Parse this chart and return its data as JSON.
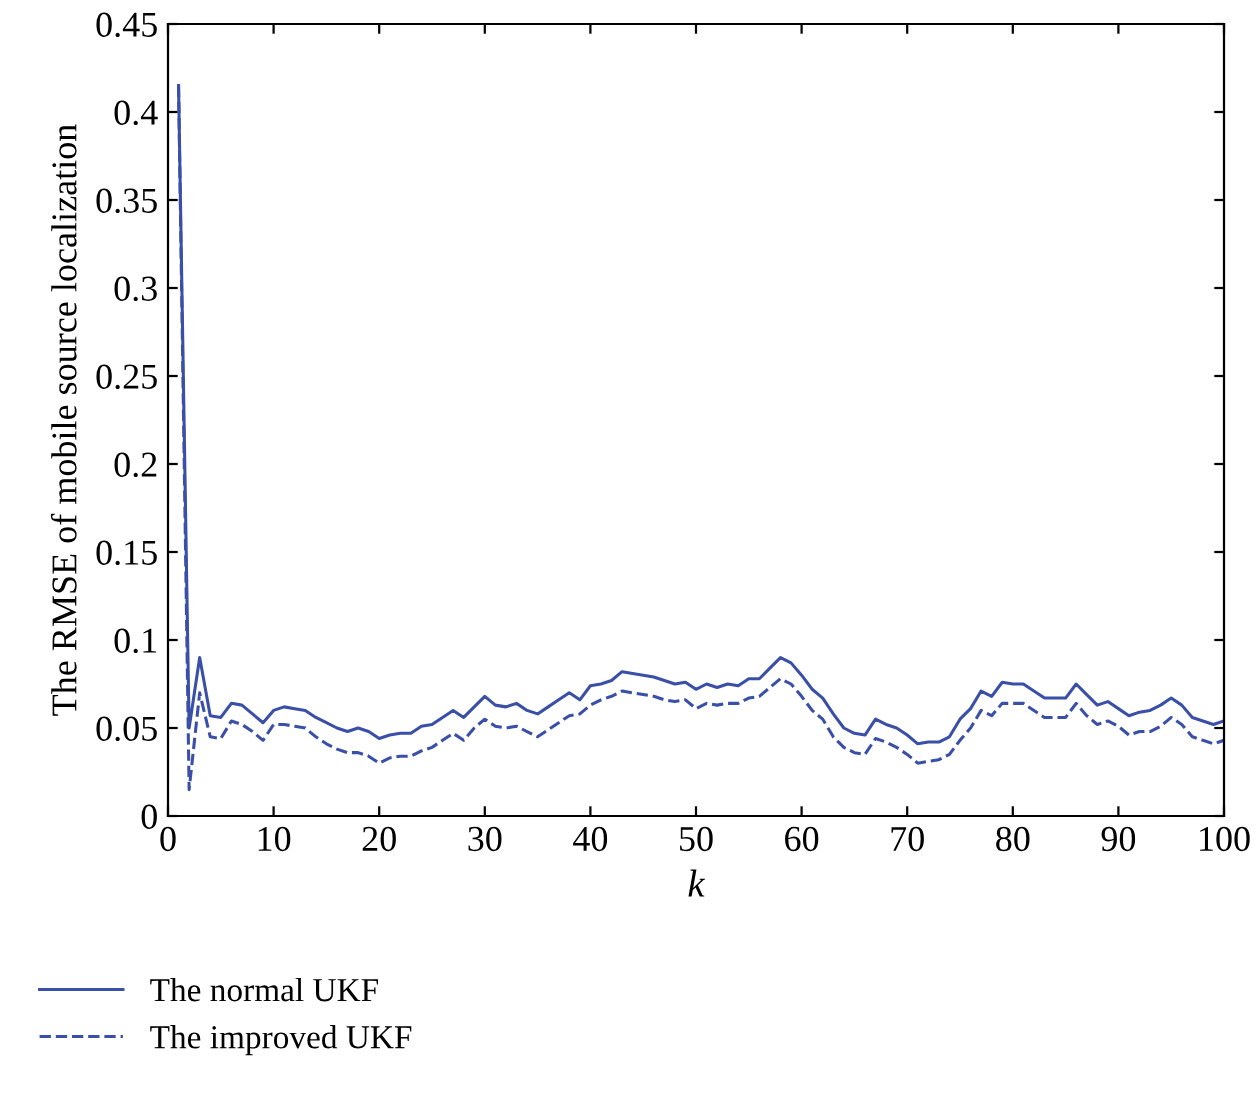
{
  "chart_data": {
    "type": "line",
    "xlabel": "k",
    "ylabel": "The RMSE of mobile source localization",
    "x": [
      1,
      2,
      3,
      4,
      5,
      6,
      7,
      8,
      9,
      10,
      11,
      12,
      13,
      14,
      15,
      16,
      17,
      18,
      19,
      20,
      21,
      22,
      23,
      24,
      25,
      26,
      27,
      28,
      29,
      30,
      31,
      32,
      33,
      34,
      35,
      36,
      37,
      38,
      39,
      40,
      41,
      42,
      43,
      44,
      45,
      46,
      47,
      48,
      49,
      50,
      51,
      52,
      53,
      54,
      55,
      56,
      57,
      58,
      59,
      60,
      61,
      62,
      63,
      64,
      65,
      66,
      67,
      68,
      69,
      70,
      71,
      72,
      73,
      74,
      75,
      76,
      77,
      78,
      79,
      80,
      81,
      82,
      83,
      84,
      85,
      86,
      87,
      88,
      89,
      90,
      91,
      92,
      93,
      94,
      95,
      96,
      97,
      98,
      99,
      100
    ],
    "series": [
      {
        "name": "The normal UKF",
        "color": "#3a4fa8",
        "line_style": "solid",
        "values": [
          0.415,
          0.05,
          0.09,
          0.057,
          0.056,
          0.064,
          0.063,
          0.058,
          0.053,
          0.06,
          0.062,
          0.061,
          0.06,
          0.056,
          0.053,
          0.05,
          0.048,
          0.05,
          0.048,
          0.044,
          0.046,
          0.047,
          0.047,
          0.051,
          0.052,
          0.056,
          0.06,
          0.056,
          0.062,
          0.068,
          0.063,
          0.062,
          0.064,
          0.06,
          0.058,
          0.062,
          0.066,
          0.07,
          0.066,
          0.074,
          0.075,
          0.077,
          0.082,
          0.081,
          0.08,
          0.079,
          0.077,
          0.075,
          0.076,
          0.072,
          0.075,
          0.073,
          0.075,
          0.074,
          0.078,
          0.078,
          0.084,
          0.09,
          0.087,
          0.08,
          0.072,
          0.067,
          0.058,
          0.05,
          0.047,
          0.046,
          0.055,
          0.052,
          0.05,
          0.046,
          0.041,
          0.042,
          0.042,
          0.045,
          0.055,
          0.061,
          0.071,
          0.068,
          0.076,
          0.075,
          0.075,
          0.071,
          0.067,
          0.067,
          0.067,
          0.075,
          0.069,
          0.063,
          0.065,
          0.061,
          0.057,
          0.059,
          0.06,
          0.063,
          0.067,
          0.063,
          0.056,
          0.054,
          0.052,
          0.054
        ]
      },
      {
        "name": "The improved UKF",
        "color": "#3a4fa8",
        "line_style": "dashed",
        "values": [
          0.415,
          0.015,
          0.07,
          0.045,
          0.044,
          0.054,
          0.052,
          0.048,
          0.043,
          0.052,
          0.052,
          0.051,
          0.05,
          0.045,
          0.041,
          0.038,
          0.036,
          0.036,
          0.034,
          0.03,
          0.033,
          0.034,
          0.034,
          0.037,
          0.039,
          0.043,
          0.047,
          0.043,
          0.05,
          0.055,
          0.051,
          0.05,
          0.051,
          0.048,
          0.045,
          0.049,
          0.053,
          0.057,
          0.058,
          0.063,
          0.066,
          0.068,
          0.071,
          0.07,
          0.069,
          0.068,
          0.066,
          0.065,
          0.066,
          0.061,
          0.064,
          0.063,
          0.064,
          0.064,
          0.067,
          0.068,
          0.073,
          0.078,
          0.075,
          0.068,
          0.06,
          0.055,
          0.045,
          0.039,
          0.036,
          0.035,
          0.044,
          0.042,
          0.039,
          0.035,
          0.03,
          0.031,
          0.032,
          0.035,
          0.043,
          0.05,
          0.06,
          0.057,
          0.064,
          0.064,
          0.064,
          0.06,
          0.056,
          0.056,
          0.056,
          0.064,
          0.057,
          0.052,
          0.054,
          0.051,
          0.046,
          0.048,
          0.048,
          0.051,
          0.056,
          0.052,
          0.045,
          0.043,
          0.041,
          0.043
        ]
      }
    ],
    "xlim": [
      0,
      100
    ],
    "xticks": [
      0,
      10,
      20,
      30,
      40,
      50,
      60,
      70,
      80,
      90,
      100
    ],
    "ylim": [
      0,
      0.45
    ],
    "yticks": [
      0,
      0.05,
      0.1,
      0.15,
      0.2,
      0.25,
      0.3,
      0.35,
      0.4,
      0.45
    ],
    "grid": false,
    "legend": "bottom left"
  }
}
